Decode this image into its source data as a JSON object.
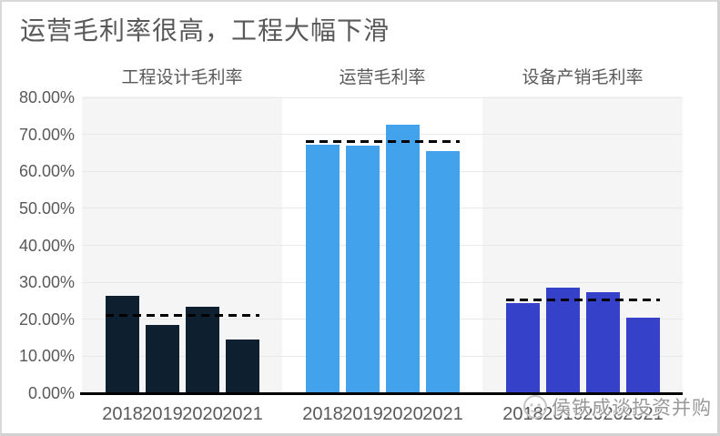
{
  "title": "运营毛利率很高，工程大幅下滑",
  "watermark": {
    "logo": "circular-mascot-logo",
    "text": "侯铁成谈投资并购"
  },
  "y_axis": {
    "tick_labels": [
      "80.00%",
      "70.00%",
      "60.00%",
      "50.00%",
      "40.00%",
      "30.00%",
      "20.00%",
      "10.00%",
      "0.00%"
    ],
    "min": 0,
    "max": 80,
    "unit": "%"
  },
  "chart_data": [
    {
      "type": "bar",
      "title": "工程设计毛利率",
      "categories": [
        "2018",
        "2019",
        "2020",
        "2021"
      ],
      "values": [
        26.3,
        18.5,
        23.5,
        14.5
      ],
      "average_dashed_line": 21.0,
      "bar_color": "#0e2030",
      "panel_background": "#f5f5f6",
      "ylim": [
        0,
        80
      ],
      "grid": true
    },
    {
      "type": "bar",
      "title": "运营毛利率",
      "categories": [
        "2018",
        "2019",
        "2020",
        "2021"
      ],
      "values": [
        67.2,
        67.0,
        72.5,
        65.5
      ],
      "average_dashed_line": 68.1,
      "bar_color": "#42a2ec",
      "panel_background": "#ffffff",
      "ylim": [
        0,
        80
      ],
      "grid": true
    },
    {
      "type": "bar",
      "title": "设备产销毛利率",
      "categories": [
        "2018",
        "2019",
        "2020",
        "2021"
      ],
      "values": [
        24.4,
        28.5,
        27.3,
        20.4
      ],
      "average_dashed_line": 25.2,
      "bar_color": "#3541c8",
      "panel_background": "#f5f5f6",
      "ylim": [
        0,
        80
      ],
      "grid": true
    }
  ],
  "style": {
    "title_color": "#595959",
    "axis_text_color": "#595959",
    "gridline_color": "#e9e9e9",
    "axis_line_color": "#000000",
    "dashed_line_color": "#000000",
    "frame_border_color": "#d9d9d9"
  }
}
